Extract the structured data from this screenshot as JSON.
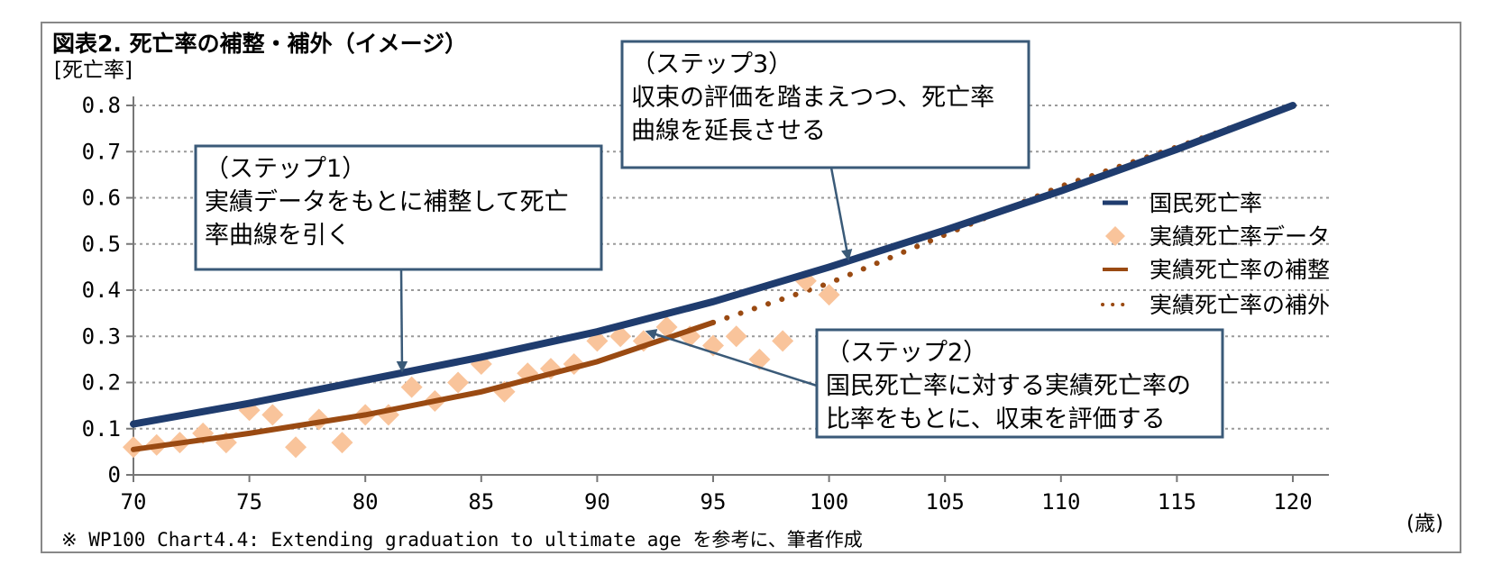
{
  "chart_data": {
    "type": "line",
    "title": "図表2. 死亡率の補整・補外（イメージ）",
    "ylabel": "[死亡率]",
    "xlabel": "(歳)",
    "xlim": [
      70,
      120
    ],
    "ylim": [
      0,
      0.8
    ],
    "x_ticks": [
      "70",
      "75",
      "80",
      "85",
      "90",
      "95",
      "100",
      "105",
      "110",
      "115",
      "120"
    ],
    "y_ticks": [
      "0",
      "0.1",
      "0.2",
      "0.3",
      "0.4",
      "0.5",
      "0.6",
      "0.7",
      "0.8"
    ],
    "grid": "horizontal dotted",
    "legend_position": "right",
    "colors": {
      "national": "#1f3c6e",
      "actual": "#f9c49b",
      "graduated": "#9a4a12",
      "extrapolated": "#9a4a12",
      "box_border": "#3a5a78"
    },
    "series": [
      {
        "name": "国民死亡率",
        "style": "line",
        "x": [
          70,
          75,
          80,
          85,
          90,
          95,
          100,
          105,
          110,
          115,
          120
        ],
        "y": [
          0.11,
          0.155,
          0.205,
          0.255,
          0.31,
          0.375,
          0.45,
          0.53,
          0.615,
          0.705,
          0.8
        ]
      },
      {
        "name": "実績死亡率データ",
        "style": "scatter",
        "x": [
          70,
          71,
          72,
          73,
          74,
          75,
          76,
          77,
          78,
          79,
          80,
          81,
          82,
          83,
          84,
          85,
          86,
          87,
          88,
          89,
          90,
          91,
          92,
          93,
          94,
          95,
          96,
          97,
          98,
          99,
          100
        ],
        "y": [
          0.06,
          0.065,
          0.07,
          0.09,
          0.07,
          0.14,
          0.13,
          0.06,
          0.12,
          0.07,
          0.13,
          0.13,
          0.19,
          0.16,
          0.2,
          0.24,
          0.18,
          0.22,
          0.23,
          0.24,
          0.29,
          0.3,
          0.29,
          0.32,
          0.3,
          0.28,
          0.3,
          0.25,
          0.29,
          0.42,
          0.39
        ]
      },
      {
        "name": "実績死亡率の補整",
        "style": "line",
        "x": [
          70,
          75,
          80,
          85,
          90,
          95
        ],
        "y": [
          0.055,
          0.09,
          0.13,
          0.18,
          0.245,
          0.33
        ]
      },
      {
        "name": "実績死亡率の補外",
        "style": "dotted",
        "x": [
          95,
          100,
          105,
          110,
          115,
          120
        ],
        "y": [
          0.33,
          0.415,
          0.52,
          0.625,
          0.71,
          0.8
        ]
      }
    ],
    "annotations": [
      {
        "id": "step1",
        "lines": [
          "（ステップ1）",
          "実績データをもとに補整して死亡",
          "率曲線を引く"
        ]
      },
      {
        "id": "step2",
        "lines": [
          "（ステップ2）",
          "国民死亡率に対する実績死亡率の",
          "比率をもとに、収束を評価する"
        ]
      },
      {
        "id": "step3",
        "lines": [
          "（ステップ3）",
          "収束の評価を踏まえつつ、死亡率",
          "曲線を延長させる"
        ]
      }
    ],
    "note": "※ WP100 Chart4.4: Extending graduation to ultimate age を参考に、筆者作成"
  }
}
